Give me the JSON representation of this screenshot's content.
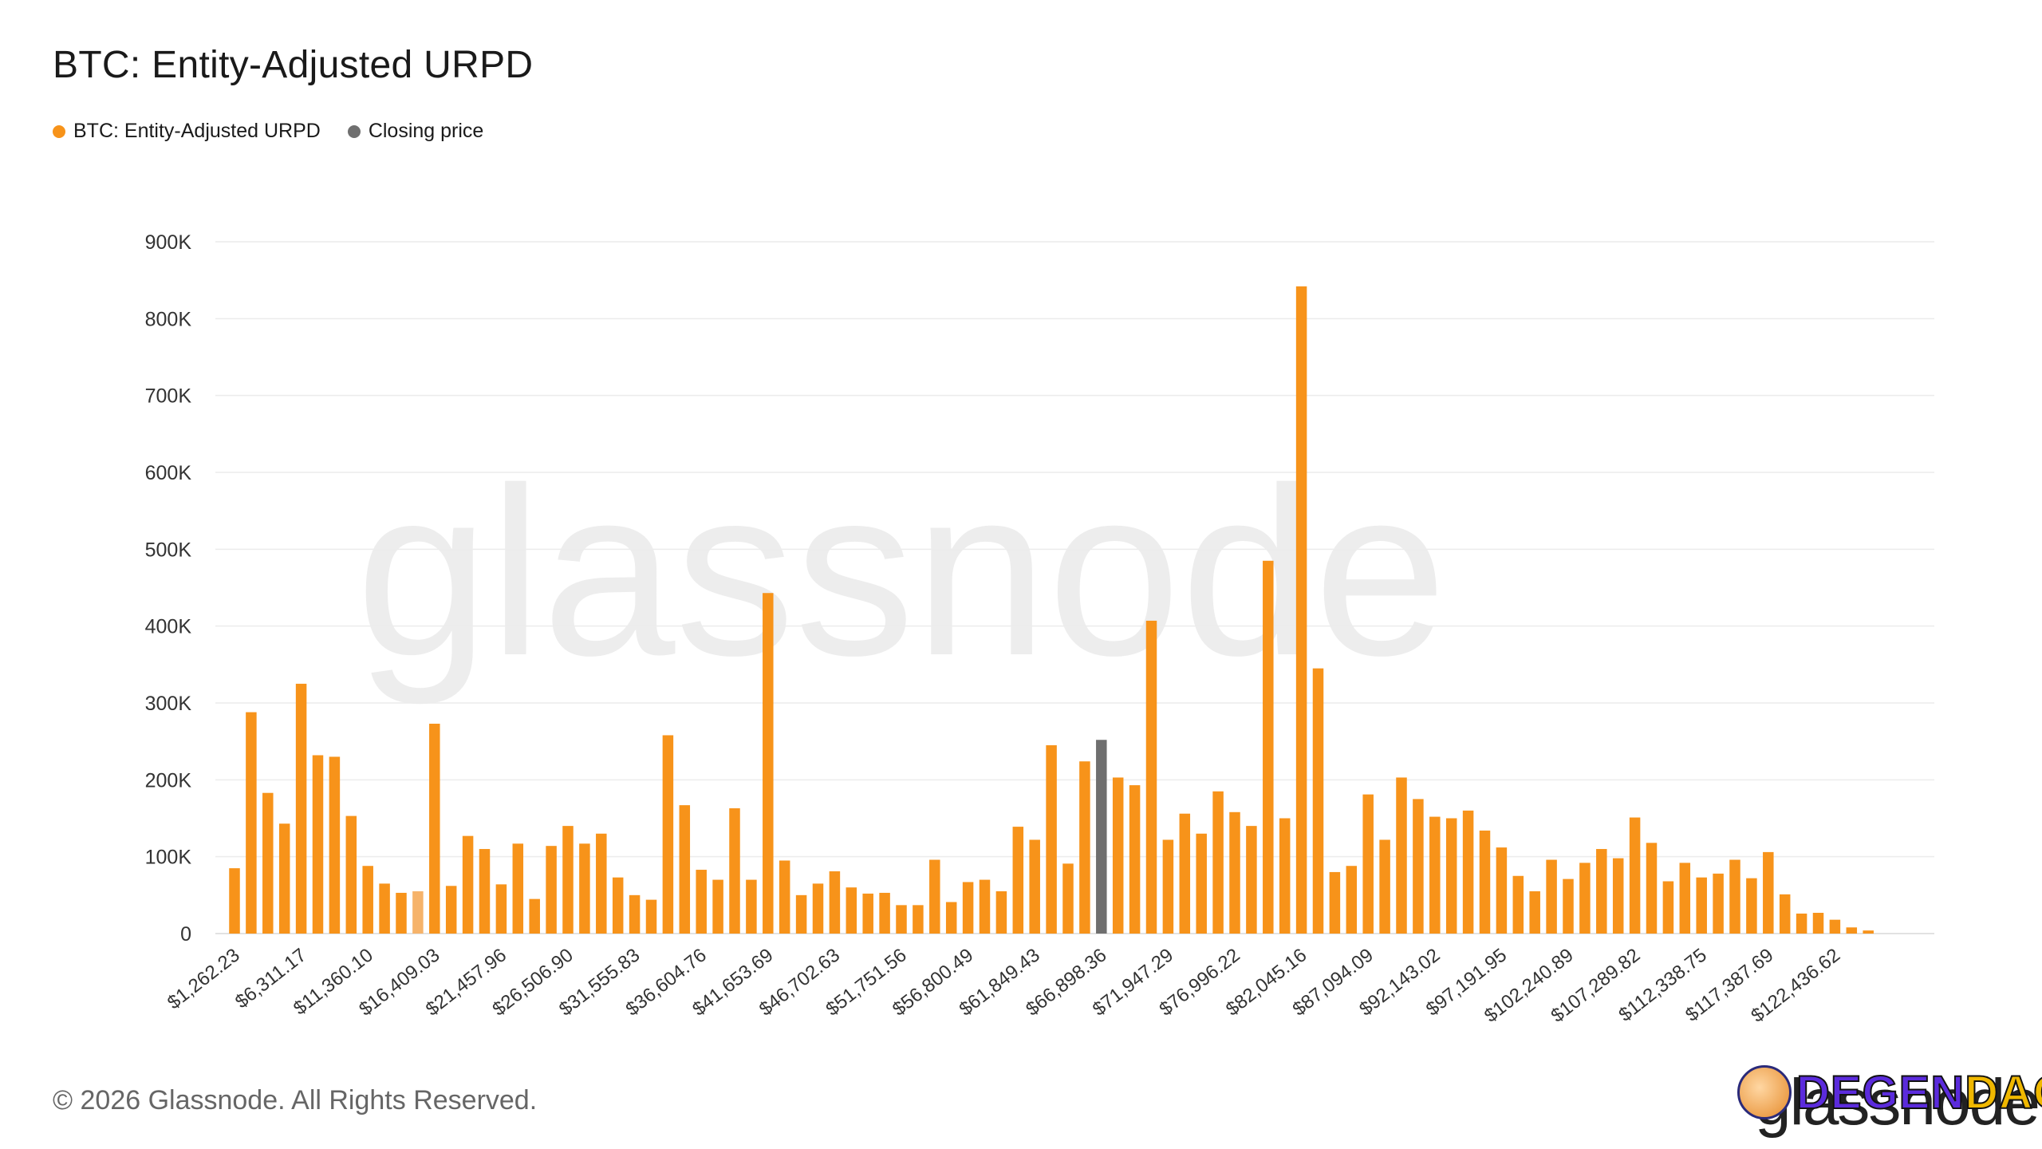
{
  "title": "BTC: Entity-Adjusted URPD",
  "legend": [
    {
      "label": "BTC: Entity-Adjusted URPD",
      "color": "#f7931a"
    },
    {
      "label": "Closing price",
      "color": "#6f6f6f"
    }
  ],
  "footer": "© 2026 Glassnode. All Rights Reserved.",
  "watermark": "glassnode",
  "brand_logo": "glassnode",
  "badge": {
    "part1": "DEGEN",
    "part2": "DAO!"
  },
  "colors": {
    "bar": "#f7931a",
    "closing": "#6f6f6f",
    "highlight": "#f6b36a",
    "grid": "#ececec"
  },
  "chart_data": {
    "type": "bar",
    "title": "BTC: Entity-Adjusted URPD",
    "ylim": [
      0,
      900000
    ],
    "y_ticks": [
      {
        "value": 0,
        "label": "0"
      },
      {
        "value": 100000,
        "label": "100K"
      },
      {
        "value": 200000,
        "label": "200K"
      },
      {
        "value": 300000,
        "label": "300K"
      },
      {
        "value": 400000,
        "label": "400K"
      },
      {
        "value": 500000,
        "label": "500K"
      },
      {
        "value": 600000,
        "label": "600K"
      },
      {
        "value": 700000,
        "label": "700K"
      },
      {
        "value": 800000,
        "label": "800K"
      },
      {
        "value": 900000,
        "label": "900K"
      }
    ],
    "x_tick_labels": [
      "$1,262.23",
      "$6,311.17",
      "$11,360.10",
      "$16,409.03",
      "$21,457.96",
      "$26,506.90",
      "$31,555.83",
      "$36,604.76",
      "$41,653.69",
      "$46,702.63",
      "$51,751.56",
      "$56,800.49",
      "$61,849.43",
      "$66,898.36",
      "$71,947.29",
      "$76,996.22",
      "$82,045.16",
      "$87,094.09",
      "$92,143.02",
      "$97,191.95",
      "$102,240.89",
      "$107,289.82",
      "$112,338.75",
      "$117,387.69",
      "$122,436.62"
    ],
    "tick_every": 4,
    "closing_price_index": 52,
    "highlight_index": 11,
    "series": [
      {
        "name": "BTC: Entity-Adjusted URPD",
        "values": [
          85000,
          288000,
          183000,
          143000,
          325000,
          232000,
          230000,
          153000,
          88000,
          65000,
          53000,
          55000,
          273000,
          62000,
          127000,
          110000,
          64000,
          117000,
          45000,
          114000,
          140000,
          117000,
          130000,
          73000,
          50000,
          44000,
          258000,
          167000,
          83000,
          70000,
          163000,
          70000,
          443000,
          95000,
          50000,
          65000,
          81000,
          60000,
          52000,
          53000,
          37000,
          37000,
          96000,
          41000,
          67000,
          70000,
          55000,
          139000,
          122000,
          245000,
          91000,
          224000,
          252000,
          203000,
          193000,
          407000,
          122000,
          156000,
          130000,
          185000,
          158000,
          140000,
          485000,
          150000,
          842000,
          345000,
          80000,
          88000,
          181000,
          122000,
          203000,
          175000,
          152000,
          150000,
          160000,
          134000,
          112000,
          75000,
          55000,
          96000,
          71000,
          92000,
          110000,
          98000,
          151000,
          118000,
          68000,
          92000,
          73000,
          78000,
          96000,
          72000,
          106000,
          51000,
          26000,
          27000,
          18000,
          8000,
          4000
        ]
      }
    ]
  }
}
